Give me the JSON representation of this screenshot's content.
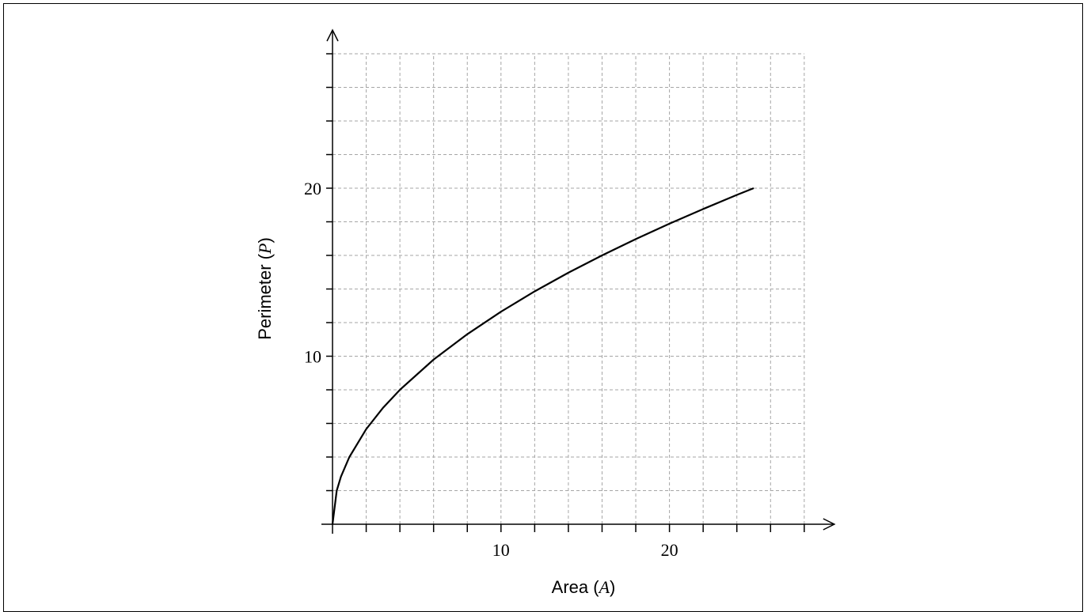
{
  "chart_data": {
    "type": "line",
    "xlabel": {
      "text": "Area ",
      "var": "A"
    },
    "ylabel": {
      "text": "Perimeter ",
      "var": "P"
    },
    "xlim": [
      0,
      28
    ],
    "ylim": [
      0,
      28
    ],
    "x_grid_step": 2,
    "y_grid_step": 2,
    "x_tick_labels": [
      10,
      20
    ],
    "y_tick_labels": [
      10,
      20
    ],
    "grid": true,
    "series": [
      {
        "function": "P = 4 * sqrt(A)",
        "x": [
          0,
          0.25,
          0.5,
          1,
          2,
          3,
          4,
          6,
          8,
          10,
          12,
          14,
          16,
          18,
          20,
          22,
          24,
          25
        ],
        "y": [
          0,
          2,
          2.83,
          4,
          5.66,
          6.93,
          8,
          9.8,
          11.31,
          12.65,
          13.86,
          14.97,
          16,
          16.97,
          17.89,
          18.76,
          19.6,
          20
        ]
      }
    ]
  }
}
